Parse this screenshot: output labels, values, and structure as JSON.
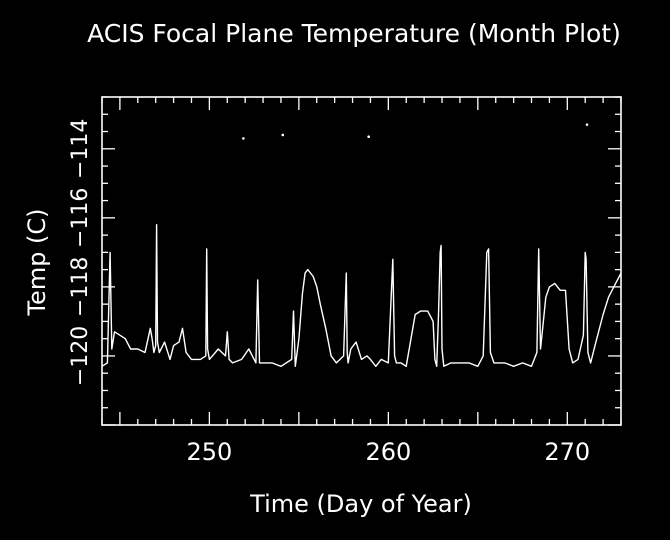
{
  "chart_data": {
    "type": "line",
    "title": "ACIS Focal Plane Temperature (Month Plot)",
    "xlabel": "Time (Day of Year)",
    "ylabel": "Temp (C)",
    "xlim": [
      244,
      273
    ],
    "ylim": [
      -122,
      -112.5
    ],
    "x_ticks": [
      {
        "value": 250,
        "label": "250"
      },
      {
        "value": 260,
        "label": "260"
      },
      {
        "value": 270,
        "label": "270"
      }
    ],
    "y_ticks": [
      {
        "value": -120,
        "label": "−120"
      },
      {
        "value": -118,
        "label": "−118"
      },
      {
        "value": -116,
        "label": "−116"
      },
      {
        "value": -114,
        "label": "−114"
      }
    ],
    "grid": false,
    "colors": {
      "background": "#000000",
      "line": "#ffffff",
      "axes": "#ffffff"
    },
    "series": [
      {
        "x": [
          244.0,
          244.3,
          244.45,
          244.55,
          244.7,
          245.0,
          245.3,
          245.6,
          246.0,
          246.4,
          246.7,
          246.8,
          246.9,
          247.0,
          247.05,
          247.1,
          247.2,
          247.5,
          247.8,
          248.0,
          248.3,
          248.5,
          248.7,
          249.0,
          249.5,
          249.8,
          249.85,
          249.9,
          250.0,
          250.5,
          250.9,
          251.0,
          251.1,
          251.3,
          251.8,
          252.2,
          252.6,
          252.7,
          252.8,
          253.0,
          253.5,
          254.0,
          254.6,
          254.7,
          254.8,
          255.0,
          255.2,
          255.35,
          255.5,
          255.8,
          256.0,
          256.2,
          256.5,
          256.8,
          257.1,
          257.5,
          257.65,
          257.7,
          257.75,
          257.9,
          258.2,
          258.5,
          258.8,
          259.0,
          259.3,
          259.6,
          260.0,
          260.25,
          260.35,
          260.45,
          260.7,
          261.0,
          261.5,
          261.8,
          262.2,
          262.5,
          262.6,
          262.7,
          262.8,
          262.9,
          262.95,
          263.0,
          263.1,
          263.5,
          264.0,
          264.5,
          265.0,
          265.3,
          265.5,
          265.6,
          265.7,
          265.9,
          266.5,
          267.0,
          267.5,
          268.0,
          268.3,
          268.4,
          268.5,
          268.6,
          268.8,
          269.0,
          269.3,
          269.6,
          269.9,
          270.1,
          270.3,
          270.6,
          270.9,
          271.0,
          271.05,
          271.15,
          271.3,
          271.6,
          272.0,
          272.3,
          272.6,
          273.0
        ],
        "y": [
          -120.3,
          -120.2,
          -117.0,
          -119.8,
          -119.3,
          -119.4,
          -119.5,
          -119.8,
          -119.8,
          -119.9,
          -119.2,
          -119.5,
          -119.9,
          -119.7,
          -116.2,
          -119.6,
          -119.9,
          -119.6,
          -120.1,
          -119.7,
          -119.6,
          -119.2,
          -119.9,
          -120.1,
          -120.1,
          -120.0,
          -116.9,
          -119.8,
          -120.1,
          -119.8,
          -120.0,
          -119.3,
          -120.1,
          -120.2,
          -120.1,
          -119.8,
          -120.2,
          -117.8,
          -120.2,
          -120.2,
          -120.2,
          -120.3,
          -120.1,
          -118.7,
          -120.3,
          -119.5,
          -118.2,
          -117.6,
          -117.5,
          -117.7,
          -118.0,
          -118.5,
          -119.2,
          -120.0,
          -120.2,
          -120.0,
          -117.6,
          -119.9,
          -120.2,
          -119.8,
          -119.6,
          -120.1,
          -120.0,
          -120.1,
          -120.3,
          -120.1,
          -120.2,
          -117.2,
          -120.0,
          -120.2,
          -120.2,
          -120.3,
          -118.8,
          -118.7,
          -118.7,
          -119.0,
          -120.1,
          -120.3,
          -118.8,
          -117.0,
          -116.8,
          -119.8,
          -120.3,
          -120.2,
          -120.2,
          -120.2,
          -120.3,
          -120.0,
          -117.0,
          -116.9,
          -119.9,
          -120.2,
          -120.2,
          -120.3,
          -120.2,
          -120.3,
          -119.9,
          -116.9,
          -119.8,
          -119.3,
          -118.3,
          -118.0,
          -117.9,
          -118.1,
          -118.1,
          -119.8,
          -120.2,
          -120.1,
          -119.4,
          -117.0,
          -117.2,
          -119.9,
          -120.2,
          -119.6,
          -118.8,
          -118.3,
          -118.0,
          -117.6
        ]
      }
    ],
    "outlier_points": [
      {
        "x": 251.9,
        "y": -113.7
      },
      {
        "x": 254.1,
        "y": -113.6
      },
      {
        "x": 258.9,
        "y": -113.65
      },
      {
        "x": 271.1,
        "y": -113.3
      }
    ]
  }
}
